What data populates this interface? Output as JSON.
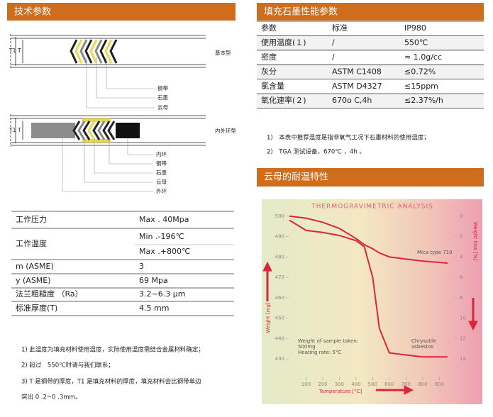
{
  "left": {
    "header": "技术参数",
    "diagram_basic": {
      "label": "基本型",
      "t1": "T1",
      "t": "T",
      "parts": [
        "钢带",
        "石墨",
        "云母"
      ]
    },
    "diagram_ring": {
      "label": "内外环型",
      "t1": "T1",
      "t": "T",
      "parts": [
        "内环",
        "钢带",
        "石墨",
        "云母",
        "外环"
      ]
    },
    "table": {
      "rows": [
        [
          "工作压力",
          "Max . 40Mpa"
        ],
        [
          "工作温度",
          "Min .-196℃",
          "Max .+800℃"
        ],
        [
          "m (ASME)",
          "3"
        ],
        [
          "y (ASME)",
          "69 Mpa"
        ],
        [
          "法兰粗糙度 （Ra）",
          "3.2~6.3 μm"
        ],
        [
          "标准厚度(T)",
          "4.5 mm"
        ]
      ]
    },
    "notes": [
      [
        "1)  此温度为填充材料使用温度，实际使用温度需结合金属材料确定；"
      ],
      [
        "2)  超过　550℃时请与我们联系；"
      ],
      [
        "3) T 是钢带的厚度，T1 是填充材料的厚度，填充材料会比钢带单边",
        "突出 0 .2~0 .3mm。"
      ]
    ]
  },
  "right": {
    "header": "填充石墨性能参数",
    "table": {
      "rows": [
        [
          "参数",
          "标准",
          "IP980"
        ],
        [
          "使用温度(１)",
          "/",
          "550℃"
        ],
        [
          "密度",
          "/",
          "≈ 1.0g/cc"
        ],
        [
          "灰分",
          "ASTM C1408",
          "≤0.72%"
        ],
        [
          "氯含量",
          "ASTM D4327",
          "≤15ppm"
        ],
        [
          "氧化速率(２)",
          "670o C,4h",
          "≤2.37%/h"
        ]
      ]
    },
    "notes": [
      "1)　本表中推荐温度是指非氧气工况下石墨材料的使用温度；",
      "2)　TGA 测试设备，670℃ ，4h 。"
    ],
    "header2": "云母的耐温特性"
  },
  "chart_data": {
    "type": "line",
    "title": "THERMOGRAVIMETRIC ANALYSIS",
    "x_label": "Temperature [°C]",
    "y_label": "Weight [mg]",
    "y2_label": "Weight loss [%]",
    "x": [
      0,
      100,
      200,
      300,
      400,
      450,
      500,
      540,
      600,
      700,
      800,
      950
    ],
    "series": [
      {
        "name": "Mica type 710",
        "color": "#d9263a",
        "values": [
          500,
          499,
          497,
          494,
          489,
          486,
          484,
          482,
          480,
          479,
          478,
          477
        ]
      },
      {
        "name": "Chrysotile asbestos",
        "label_lines": [
          "Chrysotile",
          "asbestos"
        ],
        "color": "#d9263a",
        "values": [
          498,
          493,
          492,
          490.5,
          488,
          485,
          470,
          445,
          433,
          432,
          431,
          431
        ]
      }
    ],
    "annotation": [
      "Weight of sample taken:",
      "500mg",
      "Heating rate: 5°C"
    ],
    "xlim": [
      0,
      950
    ],
    "xticks": [
      100,
      200,
      300,
      400,
      500,
      600,
      700,
      800,
      900
    ],
    "ylim": [
      420,
      502
    ],
    "yticks": [
      430,
      440,
      450,
      460,
      470,
      480,
      490,
      500
    ],
    "y2lim": [
      16,
      -0.4
    ],
    "y2ticks": [
      0,
      2,
      4,
      6,
      8,
      10,
      12,
      14
    ]
  }
}
